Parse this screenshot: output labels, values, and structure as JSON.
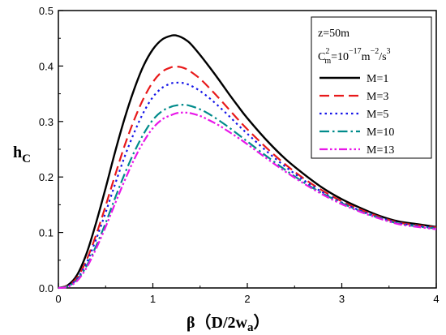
{
  "chart_data": {
    "type": "line",
    "xlabel": "β（D/2w",
    "xlabel_sub": "a",
    "xlabel_close": "）",
    "ylabel": "h",
    "ylabel_sub": "C",
    "xlim": [
      0,
      4
    ],
    "ylim": [
      0,
      0.5
    ],
    "x_ticks": [
      0,
      1,
      2,
      3,
      4
    ],
    "x_tick_labels": [
      "0",
      "1",
      "2",
      "3",
      "4"
    ],
    "y_ticks": [
      0,
      0.1,
      0.2,
      0.3,
      0.4,
      0.5
    ],
    "y_tick_labels": [
      "0.0",
      "0.1",
      "0.2",
      "0.3",
      "0.4",
      "0.5"
    ],
    "grid": false,
    "legend_position": "top-right",
    "annotations": {
      "z": "z=50m",
      "cm_base": "C",
      "cm_super": "2",
      "cm_sub": "m",
      "cm_eq": "=10",
      "cm_exp": "−17",
      "cm_unit": "m",
      "cm_unit_exp": "−2",
      "cm_rest": "/s",
      "cm_rest_exp": "3"
    },
    "x": [
      0,
      0.1,
      0.2,
      0.3,
      0.4,
      0.5,
      0.6,
      0.7,
      0.8,
      0.9,
      1.0,
      1.1,
      1.2,
      1.25,
      1.3,
      1.35,
      1.4,
      1.5,
      1.6,
      1.7,
      1.8,
      1.9,
      2.0,
      2.2,
      2.4,
      2.6,
      2.8,
      3.0,
      3.2,
      3.4,
      3.6,
      3.8,
      4.0
    ],
    "series": [
      {
        "name": "M=1",
        "color": "#000000",
        "dash": "solid",
        "values": [
          0,
          0.005,
          0.024,
          0.063,
          0.118,
          0.18,
          0.245,
          0.305,
          0.357,
          0.4,
          0.43,
          0.448,
          0.455,
          0.455,
          0.452,
          0.447,
          0.44,
          0.42,
          0.398,
          0.375,
          0.351,
          0.328,
          0.306,
          0.267,
          0.233,
          0.205,
          0.18,
          0.16,
          0.144,
          0.13,
          0.12,
          0.115,
          0.11
        ]
      },
      {
        "name": "M=3",
        "color": "#e8191a",
        "dash": "long-dash",
        "values": [
          0,
          0.004,
          0.019,
          0.051,
          0.096,
          0.148,
          0.203,
          0.256,
          0.302,
          0.341,
          0.371,
          0.39,
          0.398,
          0.399,
          0.398,
          0.395,
          0.39,
          0.377,
          0.36,
          0.342,
          0.323,
          0.304,
          0.286,
          0.253,
          0.223,
          0.197,
          0.175,
          0.156,
          0.141,
          0.128,
          0.118,
          0.113,
          0.109
        ]
      },
      {
        "name": "M=5",
        "color": "#1616e8",
        "dash": "dot",
        "values": [
          0,
          0.003,
          0.017,
          0.046,
          0.088,
          0.136,
          0.187,
          0.236,
          0.279,
          0.316,
          0.344,
          0.361,
          0.369,
          0.37,
          0.37,
          0.368,
          0.365,
          0.355,
          0.342,
          0.327,
          0.311,
          0.294,
          0.278,
          0.247,
          0.219,
          0.194,
          0.172,
          0.154,
          0.139,
          0.127,
          0.117,
          0.112,
          0.108
        ]
      },
      {
        "name": "M=10",
        "color": "#008b8b",
        "dash": "dash-dot",
        "values": [
          0,
          0.003,
          0.015,
          0.04,
          0.076,
          0.117,
          0.162,
          0.205,
          0.244,
          0.277,
          0.303,
          0.319,
          0.327,
          0.329,
          0.33,
          0.33,
          0.328,
          0.322,
          0.313,
          0.302,
          0.29,
          0.277,
          0.264,
          0.238,
          0.213,
          0.19,
          0.17,
          0.153,
          0.138,
          0.126,
          0.116,
          0.111,
          0.107
        ]
      },
      {
        "name": "M=13",
        "color": "#e817e8",
        "dash": "dash-dot-dot",
        "values": [
          0,
          0.002,
          0.013,
          0.037,
          0.071,
          0.11,
          0.152,
          0.193,
          0.231,
          0.263,
          0.288,
          0.304,
          0.312,
          0.315,
          0.316,
          0.316,
          0.315,
          0.31,
          0.302,
          0.293,
          0.282,
          0.271,
          0.259,
          0.234,
          0.21,
          0.188,
          0.168,
          0.151,
          0.137,
          0.125,
          0.115,
          0.11,
          0.106
        ]
      }
    ]
  }
}
